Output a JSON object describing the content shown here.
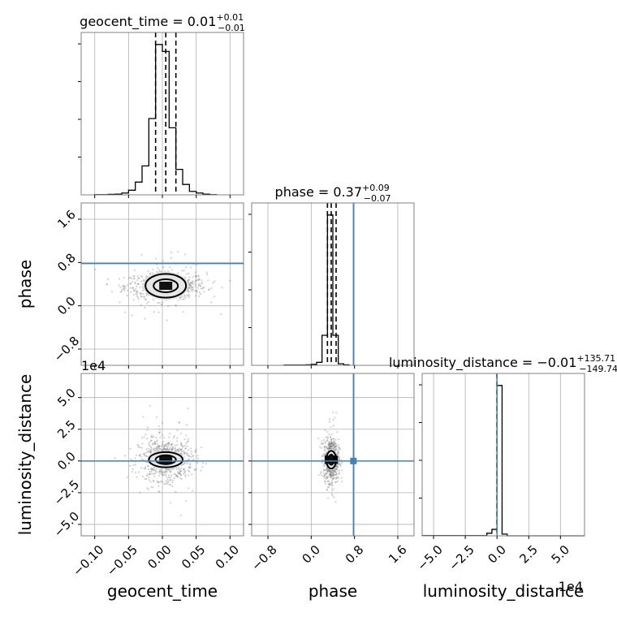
{
  "chart_data": {
    "type": "corner",
    "parameters": [
      "geocent_time",
      "phase",
      "luminosity_distance"
    ],
    "titles": {
      "geocent_time": {
        "text": "geocent_time = 0.01",
        "sup": "+0.01",
        "sub": "−0.01"
      },
      "phase": {
        "text": "phase = 0.37",
        "sup": "+0.09",
        "sub": "−0.07"
      },
      "luminosity_distance": {
        "text": "luminosity_distance = −0.01",
        "sup": "+135.71",
        "sub": "−149.74"
      }
    },
    "axis_labels": {
      "x": [
        "geocent_time",
        "phase",
        "luminosity_distance"
      ],
      "y": [
        "phase",
        "luminosity_distance"
      ]
    },
    "offset_label_y": "1e4",
    "offset_label_x": "1e4",
    "ranges": {
      "geocent_time": [
        -0.12,
        0.12
      ],
      "phase": [
        -1.1,
        1.9
      ],
      "luminosity_distance": [
        -5.9,
        6.9
      ]
    },
    "ticks": {
      "geocent_time": {
        "values": [
          -0.1,
          -0.05,
          0.0,
          0.05,
          0.1
        ],
        "labels": [
          "−0.10",
          "−0.05",
          "0.00",
          "0.05",
          "0.10"
        ]
      },
      "phase": {
        "values": [
          -0.8,
          0.0,
          0.8,
          1.6
        ],
        "labels": [
          "−0.8",
          "0.0",
          "0.8",
          "1.6"
        ]
      },
      "luminosity_distance": {
        "values": [
          -5.0,
          -2.5,
          0.0,
          2.5,
          5.0
        ],
        "labels": [
          "−5.0",
          "−2.5",
          "0.0",
          "2.5",
          "5.0"
        ]
      }
    },
    "truth": {
      "phase": 0.78,
      "luminosity_distance": 0.0
    },
    "quantiles": {
      "geocent_time": [
        -0.01,
        0.005,
        0.02
      ],
      "phase": [
        0.3,
        0.37,
        0.46
      ],
      "luminosity_distance": [
        -0.01
      ]
    },
    "histograms": {
      "geocent_time": {
        "edges": [
          -0.1,
          -0.09,
          -0.08,
          -0.07,
          -0.06,
          -0.05,
          -0.04,
          -0.03,
          -0.02,
          -0.01,
          0.0,
          0.01,
          0.02,
          0.03,
          0.04,
          0.05,
          0.06,
          0.07,
          0.08
        ],
        "counts": [
          1,
          1,
          2,
          3,
          8,
          20,
          55,
          125,
          330,
          650,
          620,
          290,
          110,
          45,
          15,
          8,
          3,
          1
        ]
      },
      "phase": {
        "edges": [
          -0.5,
          -0.4,
          -0.3,
          -0.2,
          -0.1,
          0.0,
          0.1,
          0.2,
          0.3,
          0.4,
          0.5,
          0.6,
          0.7
        ],
        "counts": [
          1,
          1,
          1,
          1,
          2,
          4,
          12,
          120,
          600,
          120,
          6,
          2
        ]
      },
      "luminosity_distance": {
        "edges": [
          -5.9,
          -0.8,
          -0.4,
          0.0,
          0.4,
          0.8,
          6.9
        ],
        "counts": [
          1,
          12,
          30,
          700,
          8,
          0
        ]
      }
    },
    "contours_2d": [
      {
        "x": "geocent_time",
        "y": "phase",
        "center": [
          0.005,
          0.37
        ],
        "levels": [
          [
            0.018,
            0.12
          ],
          [
            0.03,
            0.22
          ]
        ],
        "scatter": {
          "x_spread": 0.03,
          "y_spread": 0.12
        }
      },
      {
        "x": "geocent_time",
        "y": "luminosity_distance",
        "center": [
          0.005,
          0.1
        ],
        "levels": [
          [
            0.015,
            0.35
          ],
          [
            0.025,
            0.6
          ]
        ],
        "scatter": {
          "x_spread": 0.02,
          "y_spread": 0.8
        }
      },
      {
        "x": "phase",
        "y": "luminosity_distance",
        "center": [
          0.37,
          0.1
        ],
        "levels": [
          [
            0.05,
            0.4
          ],
          [
            0.09,
            0.7
          ]
        ],
        "scatter": {
          "x_spread": 0.07,
          "y_spread": 0.8
        }
      }
    ],
    "colors": {
      "truth": "#4682b4",
      "hist": "#000000",
      "grid": "#b0b0b0",
      "scatter": "#7f7f7f"
    }
  }
}
